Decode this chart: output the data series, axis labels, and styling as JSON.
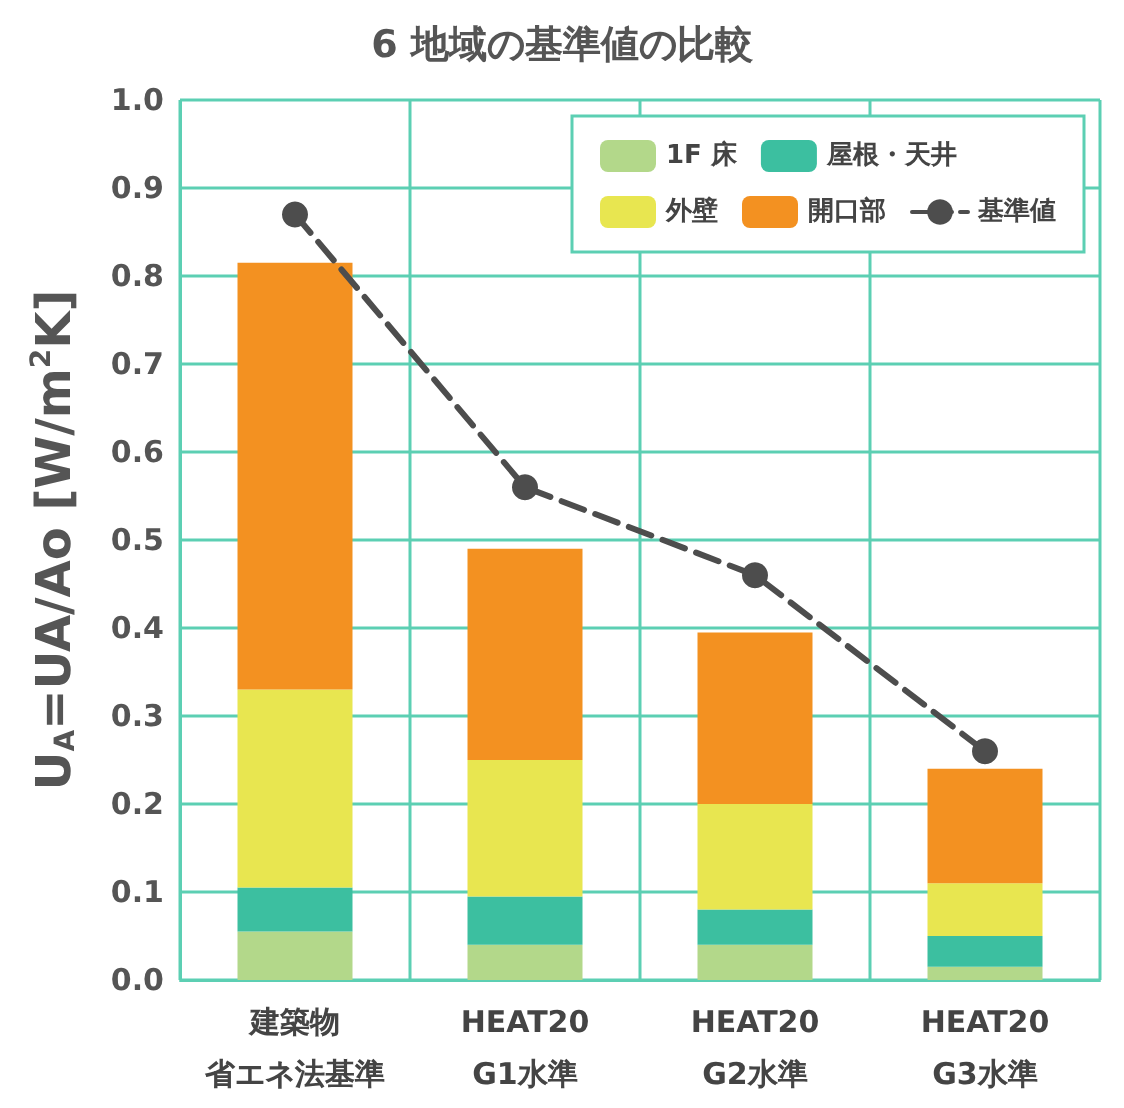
{
  "chart_data": {
    "type": "bar",
    "stacked": true,
    "title": "6 地域の基準値の比較",
    "ylabel": "U$_{A}$=UA/Ao [W/m$^{2}$K]",
    "categories": [
      "建築物省エネ法基準",
      "HEAT20 G1水準",
      "HEAT20 G2水準",
      "HEAT20 G3水準"
    ],
    "series": [
      {
        "name": "1F 床",
        "color": "#b3d88a",
        "values": [
          0.055,
          0.04,
          0.04,
          0.015
        ]
      },
      {
        "name": "屋根・天井",
        "color": "#3cbfa0",
        "values": [
          0.05,
          0.055,
          0.04,
          0.035
        ]
      },
      {
        "name": "外壁",
        "color": "#e8e650",
        "values": [
          0.225,
          0.155,
          0.12,
          0.06
        ]
      },
      {
        "name": "開口部",
        "color": "#f39121",
        "values": [
          0.485,
          0.24,
          0.195,
          0.13
        ]
      },
      {
        "name": "基準値",
        "type": "line",
        "color": "#4d4d4d",
        "values": [
          0.87,
          0.56,
          0.46,
          0.26
        ],
        "marker": "circle",
        "line_style": "dashed"
      }
    ],
    "ylim": [
      0,
      1
    ],
    "yticks": [
      {
        "value": 0,
        "label": "0.0"
      },
      0.1,
      0.2,
      0.3,
      0.4,
      0.5,
      0.6,
      0.7,
      0.8,
      0.9,
      {
        "value": 1,
        "label": "1.0"
      }
    ],
    "grid": true,
    "legend": "top right"
  }
}
